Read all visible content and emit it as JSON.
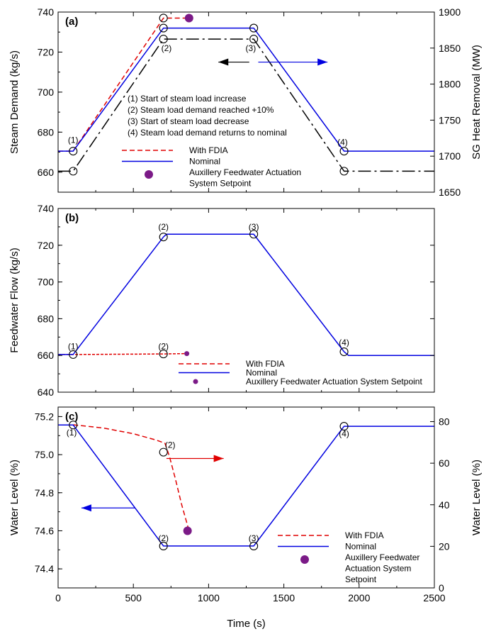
{
  "chart_data": {
    "type": "line",
    "xlabel": "Time (s)",
    "xlim": [
      0,
      2500
    ],
    "xticks": [
      0,
      500,
      1000,
      1500,
      2000,
      2500
    ],
    "panels": [
      {
        "panel": "a",
        "label": "(a)",
        "ylabel": "Steam Demand (kg/s)",
        "ylim": [
          650,
          740
        ],
        "yticks": [
          660,
          680,
          700,
          720,
          740
        ],
        "y2label": "SG Heat Removal (MW)",
        "y2lim": [
          1650,
          1900
        ],
        "y2ticks": [
          1650,
          1700,
          1750,
          1800,
          1850,
          1900
        ],
        "series": [
          {
            "name": "With FDIA",
            "color": "#e00000",
            "dash": "7,4",
            "axis": "left",
            "x": [
              0,
              100,
              700,
              850
            ],
            "y": [
              670.5,
              670.5,
              737,
              737
            ]
          },
          {
            "name": "Nominal",
            "color": "#0000e0",
            "dash": "",
            "axis": "left",
            "x": [
              0,
              100,
              700,
              1300,
              1900,
              2500
            ],
            "y": [
              670.5,
              670.5,
              732,
              732,
              670.5,
              670.5
            ]
          },
          {
            "name": "",
            "color": "#000000",
            "dash": "18,5,3,5",
            "axis": "left",
            "x": [
              0,
              100,
              700,
              1300,
              1900,
              2500
            ],
            "y": [
              660.5,
              660.5,
              726.5,
              726.5,
              660.5,
              660.5
            ]
          }
        ],
        "setpoint": {
          "name": "Auxillery Feedwater Actuation System Setpoint",
          "color": "#7b1a87",
          "x": 870,
          "y": 737
        },
        "markers": [
          {
            "x": 100,
            "y": 670.5
          },
          {
            "x": 100,
            "y": 660.5
          },
          {
            "x": 700,
            "y": 737
          },
          {
            "x": 700,
            "y": 732
          },
          {
            "x": 700,
            "y": 726.5
          },
          {
            "x": 1300,
            "y": 732
          },
          {
            "x": 1300,
            "y": 726.5
          },
          {
            "x": 1900,
            "y": 670.5
          },
          {
            "x": 1900,
            "y": 660.5
          }
        ],
        "point_labels": [
          {
            "text": "(1)",
            "x": 100,
            "y": 676
          },
          {
            "text": "(2)",
            "x": 720,
            "y": 722
          },
          {
            "text": "(3)",
            "x": 1280,
            "y": 722
          },
          {
            "text": "(4)",
            "x": 1890,
            "y": 675
          }
        ],
        "notes": [
          "(1) Start of steam load increase",
          "(2) Steam load demand reached +10%",
          "(3) Start of steam load decrease",
          "(4) Steam load demand returns to nominal"
        ],
        "arrows": [
          {
            "color": "#000000",
            "from": [
              1270,
              715
            ],
            "to": [
              1065,
              715
            ]
          },
          {
            "color": "#0000e0",
            "from": [
              1330,
              715
            ],
            "to": [
              1790,
              715
            ]
          }
        ],
        "legend": {
          "position": "lower-center",
          "entries": [
            "With FDIA",
            "Nominal",
            "Auxillery Feedwater Actuation",
            "System Setpoint"
          ]
        }
      },
      {
        "panel": "b",
        "label": "(b)",
        "ylabel": "Feedwater Flow (kg/s)",
        "ylim": [
          640,
          740
        ],
        "yticks": [
          640,
          660,
          680,
          700,
          720,
          740
        ],
        "series": [
          {
            "name": "With FDIA",
            "color": "#e00000",
            "dash": "4,2",
            "axis": "left",
            "x": [
              0,
              100,
              700,
              850
            ],
            "y": [
              660.5,
              660.5,
              660.8,
              661
            ]
          },
          {
            "name": "Nominal",
            "color": "#0000e0",
            "dash": "",
            "axis": "left",
            "x": [
              0,
              100,
              700,
              720,
              1300,
              1900,
              1930,
              2500
            ],
            "y": [
              660.5,
              660.5,
              724.5,
              726,
              726,
              662,
              660,
              660
            ]
          }
        ],
        "setpoint": {
          "name": "Auxillery Feedwater Actuation System Setpoint",
          "color": "#7b1a87",
          "x": 855,
          "y": 661
        },
        "markers": [
          {
            "x": 100,
            "y": 660.5
          },
          {
            "x": 700,
            "y": 724.5
          },
          {
            "x": 700,
            "y": 660.8
          },
          {
            "x": 1300,
            "y": 726
          },
          {
            "x": 1900,
            "y": 662
          }
        ],
        "point_labels": [
          {
            "text": "(1)",
            "x": 100,
            "y": 665
          },
          {
            "text": "(2)",
            "x": 700,
            "y": 730
          },
          {
            "text": "(2)",
            "x": 700,
            "y": 665
          },
          {
            "text": "(3)",
            "x": 1300,
            "y": 730
          },
          {
            "text": "(4)",
            "x": 1900,
            "y": 667
          }
        ],
        "legend": {
          "position": "lower-right",
          "entries": [
            "With FDIA",
            "Nominal",
            "Auxillery Feedwater Actuation System Setpoint"
          ]
        }
      },
      {
        "panel": "c",
        "label": "(c)",
        "ylabel": "Water Level (%)",
        "ylim": [
          74.3,
          75.25
        ],
        "yticks": [
          74.4,
          74.6,
          74.8,
          75.0,
          75.2
        ],
        "y2label": "Water Level (%)",
        "y2lim": [
          0,
          87
        ],
        "y2ticks": [
          0,
          20,
          40,
          60,
          80
        ],
        "series": [
          {
            "name": "With FDIA",
            "color": "#e00000",
            "dash": "7,4",
            "axis": "left",
            "x": [
              100,
              300,
              500,
              650,
              710,
              740,
              780,
              820,
              870
            ],
            "y": [
              75.157,
              75.14,
              75.11,
              75.077,
              75.06,
              74.99,
              74.87,
              74.74,
              74.6
            ]
          },
          {
            "name": "Nominal",
            "color": "#0000e0",
            "dash": "",
            "axis": "left",
            "x": [
              0,
              100,
              700,
              1300,
              1900,
              2500
            ],
            "y": [
              75.156,
              75.156,
              74.52,
              74.52,
              75.149,
              75.149
            ]
          }
        ],
        "setpoint": {
          "name": "Auxillery Feedwater Actuation System Setpoint",
          "color": "#7b1a87",
          "x": 860,
          "y": 74.6
        },
        "markers": [
          {
            "x": 100,
            "y": 75.156
          },
          {
            "x": 700,
            "y": 75.013
          },
          {
            "x": 700,
            "y": 74.52
          },
          {
            "x": 1300,
            "y": 74.52
          },
          {
            "x": 1900,
            "y": 75.149
          }
        ],
        "point_labels": [
          {
            "text": "(1)",
            "x": 90,
            "y": 75.115
          },
          {
            "text": "(2)",
            "x": 745,
            "y": 75.05
          },
          {
            "text": "(2)",
            "x": 700,
            "y": 74.56
          },
          {
            "text": "(3)",
            "x": 1300,
            "y": 74.56
          },
          {
            "text": "(4)",
            "x": 1900,
            "y": 75.11
          }
        ],
        "arrows": [
          {
            "color": "#e00000",
            "from": [
              720,
              74.98
            ],
            "to": [
              1100,
              74.98
            ]
          },
          {
            "color": "#0000e0",
            "from": [
              510,
              74.72
            ],
            "to": [
              155,
              74.72
            ]
          }
        ],
        "legend": {
          "position": "lower-right",
          "entries": [
            "With FDIA",
            "Nominal",
            "Auxillery Feedwater",
            "Actuation System",
            "Setpoint"
          ]
        }
      }
    ]
  }
}
